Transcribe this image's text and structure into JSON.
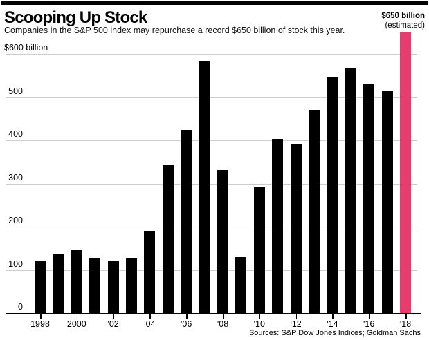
{
  "header": {
    "title": "Scooping Up Stock",
    "subtitle": "Companies in the S&P 500 index may repurchase a record $650 billion of stock this year."
  },
  "annotation": {
    "value_label": "$650 billion",
    "note": "(estimated)"
  },
  "source": "Sources: S&P Dow Jones Indices; Goldman Sachs",
  "colors": {
    "bar": "#000000",
    "highlight_bar": "#e73c6e",
    "gridline": "#cccccc",
    "axis": "#000000"
  },
  "chart_data": {
    "type": "bar",
    "title": "Scooping Up Stock",
    "subtitle": "Companies in the S&P 500 index may repurchase a record $650 billion of stock this year.",
    "xlabel": "",
    "ylabel": "$ billion",
    "ylim": [
      0,
      660
    ],
    "grid": true,
    "categories": [
      "1998",
      "1999",
      "2000",
      "2001",
      "2002",
      "2003",
      "2004",
      "2005",
      "2006",
      "2007",
      "2008",
      "2009",
      "2010",
      "2011",
      "2012",
      "2013",
      "2014",
      "2015",
      "2016",
      "2017",
      "2018"
    ],
    "values": [
      121,
      136,
      145,
      126,
      121,
      126,
      190,
      343,
      424,
      585,
      332,
      129,
      291,
      403,
      392,
      470,
      548,
      568,
      531,
      514,
      650
    ],
    "highlight_index": 20,
    "highlight_note": "$650 billion (estimated)",
    "y_axis": {
      "tick_values": [
        600,
        500,
        400,
        300,
        200,
        100,
        0
      ],
      "tick_labels": [
        "$600 billion",
        "500",
        "400",
        "300",
        "200",
        "100",
        "0"
      ]
    },
    "x_axis": {
      "tick_labels": [
        "1998",
        "2000",
        "'02",
        "'04",
        "'06",
        "'08",
        "'10",
        "'12",
        "'14",
        "'16",
        "'18"
      ],
      "tick_every": 2
    }
  }
}
